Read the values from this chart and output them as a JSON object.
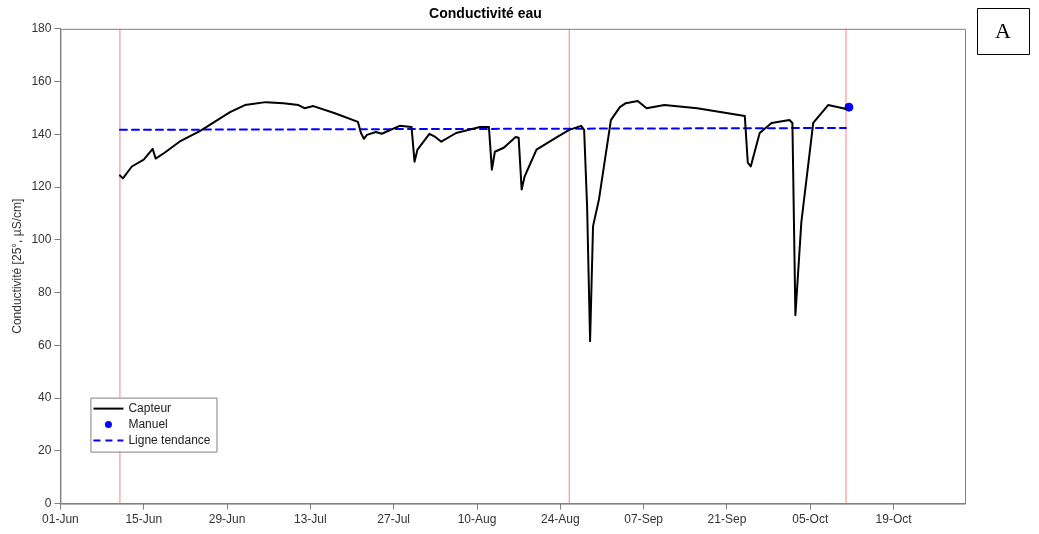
{
  "chart_data": {
    "type": "line",
    "title": "Conductivité eau",
    "ylabel": "Conductivité [25°, µS/cm]",
    "annotations": [
      "A"
    ],
    "xlim": [
      "--06-01",
      "--10-31"
    ],
    "xticks": [
      {
        "value": "--06-01",
        "label": "01-Jun"
      },
      {
        "value": "--06-15",
        "label": "15-Jun"
      },
      {
        "value": "--06-29",
        "label": "29-Jun"
      },
      {
        "value": "--07-13",
        "label": "13-Jul"
      },
      {
        "value": "--07-27",
        "label": "27-Jul"
      },
      {
        "value": "--08-10",
        "label": "10-Aug"
      },
      {
        "value": "--08-24",
        "label": "24-Aug"
      },
      {
        "value": "--09-07",
        "label": "07-Sep"
      },
      {
        "value": "--09-21",
        "label": "21-Sep"
      },
      {
        "value": "--10-05",
        "label": "05-Oct"
      },
      {
        "value": "--10-19",
        "label": "19-Oct"
      }
    ],
    "ylim": [
      0,
      180
    ],
    "yticks": [
      0,
      20,
      40,
      60,
      80,
      100,
      120,
      140,
      160,
      180
    ],
    "grid": false,
    "legend": "bottom left",
    "ref_lines": [
      {
        "axis": "x",
        "value": "--06-11",
        "color": "#ff8080"
      },
      {
        "axis": "x",
        "value": "--08-25T12:00",
        "color": "#ff8080"
      },
      {
        "axis": "x",
        "value": "--10-11",
        "color": "#ff8080"
      }
    ],
    "series": [
      {
        "name": "Capteur",
        "type": "line",
        "color": "#000000",
        "marker": "none",
        "line_style": "solid",
        "x": [
          "--06-11",
          "--06-11T12:00",
          "--06-13",
          "--06-15",
          "--06-16T12:00",
          "--06-17",
          "--06-18T12:00",
          "--06-21",
          "--06-24T12:00",
          "--06-29T12:00",
          "--07-02",
          "--07-05T12:00",
          "--07-08T12:00",
          "--07-11",
          "--07-12",
          "--07-13T12:00",
          "--07-17",
          "--07-21",
          "--07-21T12:00",
          "--07-22",
          "--07-22T12:00",
          "--07-24",
          "--07-25",
          "--07-28",
          "--07-30",
          "--07-30T12:00",
          "--07-31",
          "--08-02",
          "--08-03",
          "--08-04",
          "--08-06T12:00",
          "--08-10T12:00",
          "--08-12",
          "--08-12T12:00",
          "--08-13",
          "--08-14T12:00",
          "--08-16T12:00",
          "--08-17",
          "--08-17T12:00",
          "--08-18",
          "--08-20",
          "--08-23T12:00",
          "--08-25T12:00",
          "--08-27T12:00",
          "--08-28",
          "--08-28T12:00",
          "--08-29",
          "--08-29T12:00",
          "--08-30T12:00",
          "--09-01T12:00",
          "--09-03",
          "--09-04",
          "--09-06",
          "--09-07T12:00",
          "--09-10T12:00",
          "--09-16",
          "--09-24",
          "--09-24T12:00",
          "--09-25",
          "--09-26T12:00",
          "--09-28T12:00",
          "--10-01T12:00",
          "--10-02",
          "--10-02T12:00",
          "--10-03T12:00",
          "--10-05T12:00",
          "--10-08",
          "--10-10T12:00",
          "--10-11"
        ],
        "values": [
          124.4,
          123.3,
          127.8,
          130.4,
          134.5,
          130.8,
          133.0,
          137.2,
          141.3,
          148.4,
          151.1,
          152.2,
          151.8,
          151.1,
          149.9,
          150.7,
          148.1,
          144.7,
          140.5,
          138.3,
          139.8,
          140.9,
          140.2,
          143.2,
          142.8,
          129.6,
          134.2,
          140.2,
          139.0,
          137.2,
          140.5,
          142.8,
          142.8,
          126.6,
          133.4,
          134.9,
          139.0,
          138.7,
          119.1,
          124.0,
          134.2,
          139.0,
          141.7,
          143.2,
          141.7,
          112.7,
          61.6,
          105.2,
          115.4,
          145.4,
          150.3,
          151.8,
          152.6,
          149.9,
          151.1,
          149.9,
          146.9,
          129.3,
          127.8,
          140.5,
          144.3,
          145.4,
          144.3,
          71.4,
          106.7,
          144.3,
          151.1,
          149.9,
          149.6
        ]
      },
      {
        "name": "Manuel",
        "type": "scatter",
        "color": "#0000ff",
        "marker": "circle",
        "x": [
          "--10-11T12:00"
        ],
        "values": [
          150.3
        ]
      },
      {
        "name": "Ligne tendance",
        "type": "line",
        "color": "#0000ff",
        "marker": "none",
        "line_style": "dashed",
        "x": [
          "--06-11",
          "--10-11"
        ],
        "values": [
          141.7,
          142.4
        ]
      }
    ]
  }
}
